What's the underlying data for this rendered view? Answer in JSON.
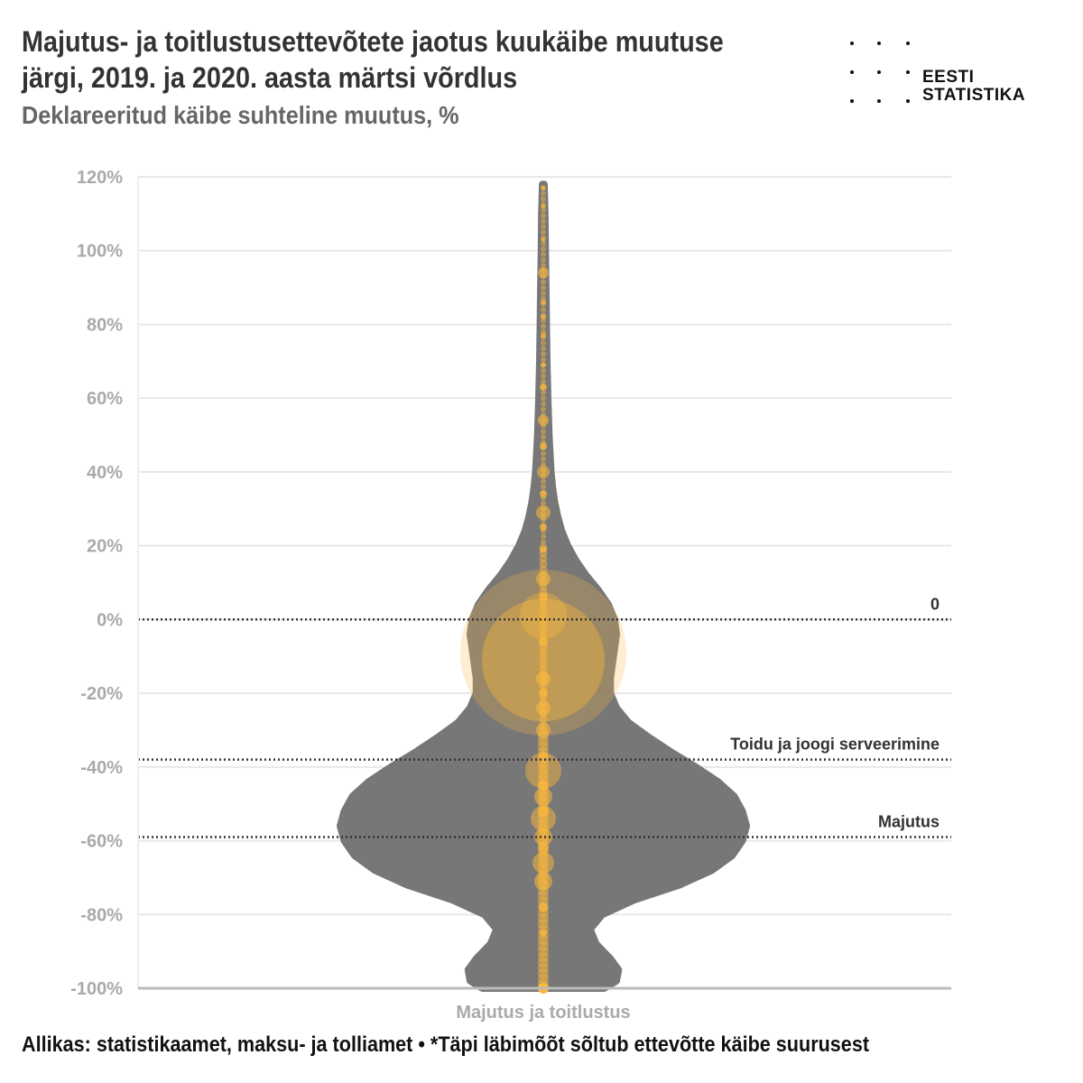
{
  "header": {
    "title": "Majutus- ja toitlustusettevõtete jaotus kuukäibe muutuse järgi, 2019. ja 2020. aasta märtsi võrdlus",
    "subtitle": "Deklareeritud käibe suhteline muutus, %"
  },
  "logo": {
    "line1": "EESTI",
    "line2": "STATISTIKA"
  },
  "footer": {
    "source": "Allikas: statistikaamet, maksu- ja tolliamet • *Täpi läbimõõt sõltub ettevõtte käibe suurusest"
  },
  "chart_data": {
    "type": "violin",
    "title": "Majutus- ja toitlustusettevõtete jaotus kuukäibe muutuse järgi, 2019. ja 2020. aasta märtsi võrdlus",
    "subtitle": "Deklareeritud käibe suhteline muutus, %",
    "category": "Majutus ja toitlustus",
    "ylim": [
      -100,
      120
    ],
    "yticks": [
      -100,
      -80,
      -60,
      -40,
      -20,
      0,
      20,
      40,
      60,
      80,
      100,
      120
    ],
    "ytick_labels": [
      "-100%",
      "-80%",
      "-60%",
      "-40%",
      "-20%",
      "0%",
      "20%",
      "40%",
      "60%",
      "80%",
      "100%",
      "120%"
    ],
    "grid": true,
    "violin_color": "#777777",
    "point_color": "#FDB93C",
    "density_profile": [
      {
        "y": -100,
        "w": 0.3
      },
      {
        "y": -98,
        "w": 0.36
      },
      {
        "y": -95,
        "w": 0.37
      },
      {
        "y": -92,
        "w": 0.33
      },
      {
        "y": -88,
        "w": 0.26
      },
      {
        "y": -84,
        "w": 0.23
      },
      {
        "y": -80,
        "w": 0.29
      },
      {
        "y": -76,
        "w": 0.45
      },
      {
        "y": -72,
        "w": 0.67
      },
      {
        "y": -68,
        "w": 0.83
      },
      {
        "y": -64,
        "w": 0.93
      },
      {
        "y": -60,
        "w": 0.98
      },
      {
        "y": -56,
        "w": 1.0
      },
      {
        "y": -52,
        "w": 0.98
      },
      {
        "y": -48,
        "w": 0.94
      },
      {
        "y": -44,
        "w": 0.86
      },
      {
        "y": -40,
        "w": 0.75
      },
      {
        "y": -36,
        "w": 0.63
      },
      {
        "y": -32,
        "w": 0.52
      },
      {
        "y": -28,
        "w": 0.42
      },
      {
        "y": -24,
        "w": 0.36
      },
      {
        "y": -20,
        "w": 0.33
      },
      {
        "y": -16,
        "w": 0.33
      },
      {
        "y": -12,
        "w": 0.34
      },
      {
        "y": -8,
        "w": 0.35
      },
      {
        "y": -4,
        "w": 0.36
      },
      {
        "y": 0,
        "w": 0.35
      },
      {
        "y": 4,
        "w": 0.32
      },
      {
        "y": 8,
        "w": 0.27
      },
      {
        "y": 12,
        "w": 0.21
      },
      {
        "y": 16,
        "w": 0.16
      },
      {
        "y": 20,
        "w": 0.12
      },
      {
        "y": 24,
        "w": 0.09
      },
      {
        "y": 28,
        "w": 0.07
      },
      {
        "y": 32,
        "w": 0.055
      },
      {
        "y": 36,
        "w": 0.045
      },
      {
        "y": 40,
        "w": 0.038
      },
      {
        "y": 50,
        "w": 0.028
      },
      {
        "y": 60,
        "w": 0.022
      },
      {
        "y": 70,
        "w": 0.018
      },
      {
        "y": 80,
        "w": 0.015
      },
      {
        "y": 90,
        "w": 0.013
      },
      {
        "y": 100,
        "w": 0.01
      },
      {
        "y": 110,
        "w": 0.008
      },
      {
        "y": 118,
        "w": 0.004
      }
    ],
    "points": [
      {
        "y": -9,
        "size": 46,
        "opacity": 0.25
      },
      {
        "y": -11,
        "size": 34,
        "opacity": 0.4
      },
      {
        "y": 1,
        "size": 13,
        "opacity": 0.35
      },
      {
        "y": -41,
        "size": 10,
        "opacity": 0.45
      },
      {
        "y": -54,
        "size": 7,
        "opacity": 0.5
      },
      {
        "y": -66,
        "size": 6,
        "opacity": 0.5
      },
      {
        "y": -71,
        "size": 5,
        "opacity": 0.55
      },
      {
        "y": -59,
        "size": 5,
        "opacity": 0.55
      },
      {
        "y": -48,
        "size": 5,
        "opacity": 0.55
      },
      {
        "y": -30,
        "size": 4,
        "opacity": 0.55
      },
      {
        "y": -24,
        "size": 4,
        "opacity": 0.55
      },
      {
        "y": -16,
        "size": 4,
        "opacity": 0.55
      },
      {
        "y": 11,
        "size": 4,
        "opacity": 0.55
      },
      {
        "y": 29,
        "size": 4,
        "opacity": 0.55
      },
      {
        "y": 40,
        "size": 3.5,
        "opacity": 0.55
      },
      {
        "y": 54,
        "size": 3,
        "opacity": 0.6
      },
      {
        "y": 94,
        "size": 3,
        "opacity": 0.6
      },
      {
        "y": -100,
        "size": 3,
        "opacity": 1.0
      },
      {
        "y": -85,
        "size": 2,
        "opacity": 0.7
      },
      {
        "y": -78,
        "size": 2.5,
        "opacity": 0.7
      },
      {
        "y": -62,
        "size": 3,
        "opacity": 0.6
      },
      {
        "y": -52,
        "size": 3,
        "opacity": 0.6
      },
      {
        "y": -45,
        "size": 3,
        "opacity": 0.6
      },
      {
        "y": -37,
        "size": 2.5,
        "opacity": 0.6
      },
      {
        "y": -20,
        "size": 2.5,
        "opacity": 0.6
      },
      {
        "y": -6,
        "size": 2.5,
        "opacity": 0.6
      },
      {
        "y": 6,
        "size": 2.5,
        "opacity": 0.6
      },
      {
        "y": 19,
        "size": 2,
        "opacity": 0.7
      },
      {
        "y": 25,
        "size": 2,
        "opacity": 0.7
      },
      {
        "y": 34,
        "size": 2,
        "opacity": 0.7
      },
      {
        "y": 47,
        "size": 2,
        "opacity": 0.7
      },
      {
        "y": 63,
        "size": 2,
        "opacity": 0.7
      },
      {
        "y": 69,
        "size": 1.5,
        "opacity": 0.7
      },
      {
        "y": 77,
        "size": 1.5,
        "opacity": 0.7
      },
      {
        "y": 82,
        "size": 1.5,
        "opacity": 0.7
      },
      {
        "y": 86,
        "size": 1.5,
        "opacity": 0.7
      },
      {
        "y": 103,
        "size": 1.2,
        "opacity": 0.7
      },
      {
        "y": 112,
        "size": 1.2,
        "opacity": 0.7
      },
      {
        "y": 117,
        "size": 1.2,
        "opacity": 0.7
      }
    ],
    "reference_lines": [
      {
        "label": "0",
        "y": 0
      },
      {
        "label": "Toidu ja joogi serveerimine",
        "y": -38
      },
      {
        "label": "Majutus",
        "y": -59
      }
    ]
  }
}
